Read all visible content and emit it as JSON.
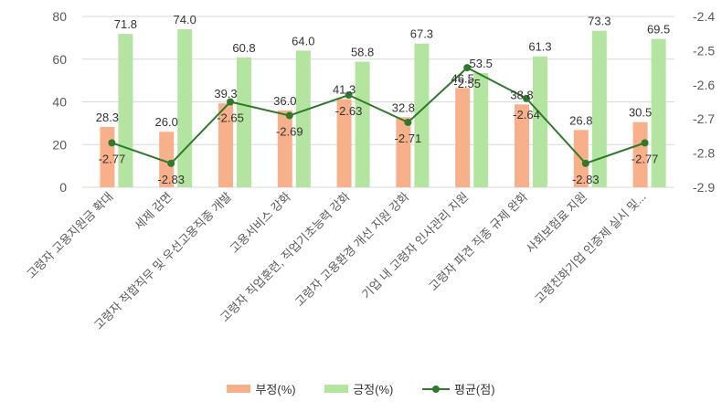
{
  "chart_data": {
    "type": "bar",
    "categories": [
      "고령자 고용지원금 확대",
      "세제 감면",
      "고령자 적합직무 및 우선고용직종 개발",
      "고용서비스 강화",
      "고령자 직업훈련, 직업기초능력 강화",
      "고령자 고용환경 개선 지원 강화",
      "기업 내 고령자 인사관리 지원",
      "고령자 파견 직종 규제 완화",
      "사회보험료 지원",
      "고령친화기업 인증제 실시 및..."
    ],
    "series": [
      {
        "name": "부정(%)",
        "type": "bar",
        "axis": "left",
        "color": "#F8B08A",
        "values": [
          28.3,
          26.0,
          39.3,
          36.0,
          41.3,
          32.8,
          46.5,
          38.8,
          26.8,
          30.5
        ],
        "labels": [
          "28.3",
          "26.0",
          "39.3",
          "36.0",
          "41.3",
          "32.8",
          "46.5",
          "38.8",
          "26.8",
          "30.5"
        ]
      },
      {
        "name": "긍정(%)",
        "type": "bar",
        "axis": "left",
        "color": "#B4E5A0",
        "values": [
          71.8,
          74.0,
          60.8,
          64.0,
          58.8,
          67.3,
          53.5,
          61.3,
          73.3,
          69.5
        ],
        "labels": [
          "71.8",
          "74.0",
          "60.8",
          "64.0",
          "58.8",
          "67.3",
          "53.5",
          "61.3",
          "73.3",
          "69.5"
        ]
      },
      {
        "name": "평균(점)",
        "type": "line",
        "axis": "right",
        "color": "#2F7A2A",
        "values": [
          -2.77,
          -2.83,
          -2.65,
          -2.69,
          -2.63,
          -2.71,
          -2.55,
          -2.64,
          -2.83,
          -2.77
        ],
        "labels": [
          "-2.77",
          "-2.83",
          "-2.65",
          "-2.69",
          "-2.63",
          "-2.71",
          "-2.55",
          "-2.64",
          "-2.83",
          "-2.77"
        ]
      }
    ],
    "y_left": {
      "range": [
        0,
        80
      ],
      "ticks": [
        "0",
        "20",
        "40",
        "60",
        "80"
      ]
    },
    "y_right": {
      "range": [
        -2.9,
        -2.4
      ],
      "ticks": [
        "-2.4",
        "-2.5",
        "-2.6",
        "-2.7",
        "-2.8",
        "-2.9"
      ]
    },
    "grid": "horizontal",
    "legend_position": "bottom"
  }
}
